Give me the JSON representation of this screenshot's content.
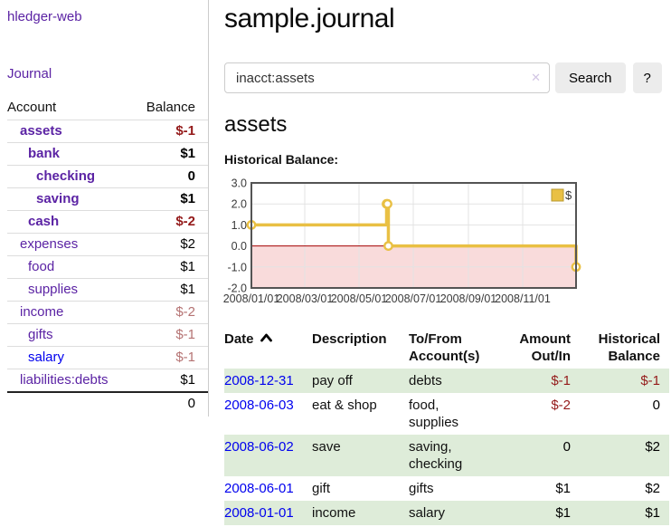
{
  "sidebar": {
    "app_title": "hledger-web",
    "journal_link": "Journal",
    "accounts_table": {
      "headers": {
        "account": "Account",
        "balance": "Balance"
      },
      "rows": [
        {
          "name": "assets",
          "balance": "$-1",
          "level": 0,
          "bold": true,
          "link": "purple",
          "tone": "neg"
        },
        {
          "name": "bank",
          "balance": "$1",
          "level": 1,
          "bold": true,
          "link": "purple",
          "tone": "pos"
        },
        {
          "name": "checking",
          "balance": "0",
          "level": 2,
          "bold": true,
          "link": "purple",
          "tone": "pos"
        },
        {
          "name": "saving",
          "balance": "$1",
          "level": 2,
          "bold": true,
          "link": "purple",
          "tone": "pos"
        },
        {
          "name": "cash",
          "balance": "$-2",
          "level": 1,
          "bold": true,
          "link": "purple",
          "tone": "neg"
        },
        {
          "name": "expenses",
          "balance": "$2",
          "level": 0,
          "bold": false,
          "link": "purple",
          "tone": "pos"
        },
        {
          "name": "food",
          "balance": "$1",
          "level": 1,
          "bold": false,
          "link": "purple",
          "tone": "pos"
        },
        {
          "name": "supplies",
          "balance": "$1",
          "level": 1,
          "bold": false,
          "link": "purple",
          "tone": "pos"
        },
        {
          "name": "income",
          "balance": "$-2",
          "level": 0,
          "bold": false,
          "link": "purple",
          "tone": "neg-soft"
        },
        {
          "name": "gifts",
          "balance": "$-1",
          "level": 1,
          "bold": false,
          "link": "purple",
          "tone": "neg-soft"
        },
        {
          "name": "salary",
          "balance": "$-1",
          "level": 1,
          "bold": false,
          "link": "blue",
          "tone": "neg-soft"
        },
        {
          "name": "liabilities:debts",
          "balance": "$1",
          "level": 0,
          "bold": false,
          "link": "purple",
          "tone": "pos"
        }
      ],
      "total": "0"
    }
  },
  "main": {
    "title": "sample.journal",
    "search": {
      "value": "inacct:assets",
      "clear_icon": "✕",
      "search_button": "Search",
      "help_button": "?"
    },
    "account_heading": "assets",
    "chart_heading": "Historical Balance:",
    "register_table": {
      "headers": [
        "Date",
        "Description",
        "To/From Account(s)",
        "Amount Out/In",
        "Historical Balance"
      ],
      "rows": [
        {
          "date": "2008-12-31",
          "description": "pay off",
          "accounts": "debts",
          "amount": "$-1",
          "amount_tone": "neg",
          "balance": "$-1",
          "balance_tone": "neg"
        },
        {
          "date": "2008-06-03",
          "description": "eat & shop",
          "accounts": "food, supplies",
          "amount": "$-2",
          "amount_tone": "neg",
          "balance": "0",
          "balance_tone": "pos"
        },
        {
          "date": "2008-06-02",
          "description": "save",
          "accounts": "saving, checking",
          "amount": "0",
          "amount_tone": "pos",
          "balance": "$2",
          "balance_tone": "pos"
        },
        {
          "date": "2008-06-01",
          "description": "gift",
          "accounts": "gifts",
          "amount": "$1",
          "amount_tone": "pos",
          "balance": "$2",
          "balance_tone": "pos"
        },
        {
          "date": "2008-01-01",
          "description": "income",
          "accounts": "salary",
          "amount": "$1",
          "amount_tone": "pos",
          "balance": "$1",
          "balance_tone": "pos"
        }
      ]
    }
  },
  "chart_data": {
    "type": "line",
    "step": true,
    "title": "Historical Balance",
    "series": [
      {
        "name": "$",
        "color": "#e9c044",
        "points": [
          [
            "2008-01-01",
            1
          ],
          [
            "2008-06-01",
            2
          ],
          [
            "2008-06-02",
            2
          ],
          [
            "2008-06-03",
            0
          ],
          [
            "2008-12-31",
            -1
          ]
        ]
      }
    ],
    "x_range": [
      "2008-01-01",
      "2008-12-31"
    ],
    "x_ticks": [
      "2008/01/01",
      "2008/03/01",
      "2008/05/01",
      "2008/07/01",
      "2008/09/01",
      "2008/11/01"
    ],
    "y_ticks": [
      3.0,
      2.0,
      1.0,
      0.0,
      -1.0,
      -2.0
    ],
    "ylim": [
      -2,
      3
    ],
    "grid": true,
    "grid_color": "#e3e3e3",
    "negative_fill": "#f9dbdb",
    "zero_line_color": "#a40000",
    "plot_border_color": "#545454",
    "legend": "$",
    "legend_position": "top-right"
  },
  "colors": {
    "link_purple": "#5b23a4",
    "link_blue": "#0000ee",
    "negative_red": "#941a1a",
    "negative_soft_red": "#b57373",
    "row_stripe_green": "#deecd9",
    "chart_gold": "#e9c044",
    "chart_negative_pink": "#f9dbdb",
    "chart_zero_line": "#a40000"
  }
}
